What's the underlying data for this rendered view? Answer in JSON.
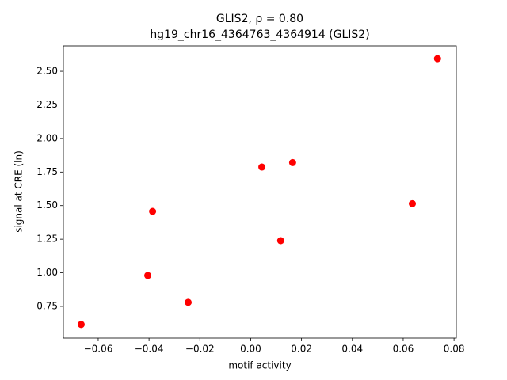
{
  "chart_data": {
    "type": "scatter",
    "title": "GLIS2, ρ = 0.80",
    "subtitle": "hg19_chr16_4364763_4364914 (GLIS2)",
    "x_label": "motif activity",
    "y_label": "signal at CRE (ln)",
    "x": [
      -0.0667,
      -0.0405,
      -0.0386,
      -0.0246,
      0.0044,
      0.0118,
      0.0165,
      0.0636,
      0.0735
    ],
    "values": [
      0.615,
      0.98,
      1.457,
      0.78,
      1.787,
      1.239,
      1.82,
      1.514,
      2.594
    ],
    "color": "#ff0000",
    "xlim": [
      -0.0737,
      0.0809
    ],
    "ylim": [
      0.514,
      2.689
    ],
    "xticks": [
      {
        "value": -0.06,
        "label": "−0.06"
      },
      {
        "value": -0.04,
        "label": "−0.04"
      },
      {
        "value": -0.02,
        "label": "−0.02"
      },
      {
        "value": 0,
        "label": "0.00"
      },
      {
        "value": 0.02,
        "label": "0.02"
      },
      {
        "value": 0.04,
        "label": "0.04"
      },
      {
        "value": 0.06,
        "label": "0.06"
      },
      {
        "value": 0.08,
        "label": "0.08"
      }
    ],
    "yticks": [
      0.75,
      {
        "value": 1,
        "label": "1.00"
      },
      1.25,
      {
        "value": 1.5,
        "label": "1.50"
      },
      1.75,
      {
        "value": 2,
        "label": "2.00"
      },
      2.25,
      {
        "value": 2.5,
        "label": "2.50"
      }
    ],
    "grid": false
  }
}
